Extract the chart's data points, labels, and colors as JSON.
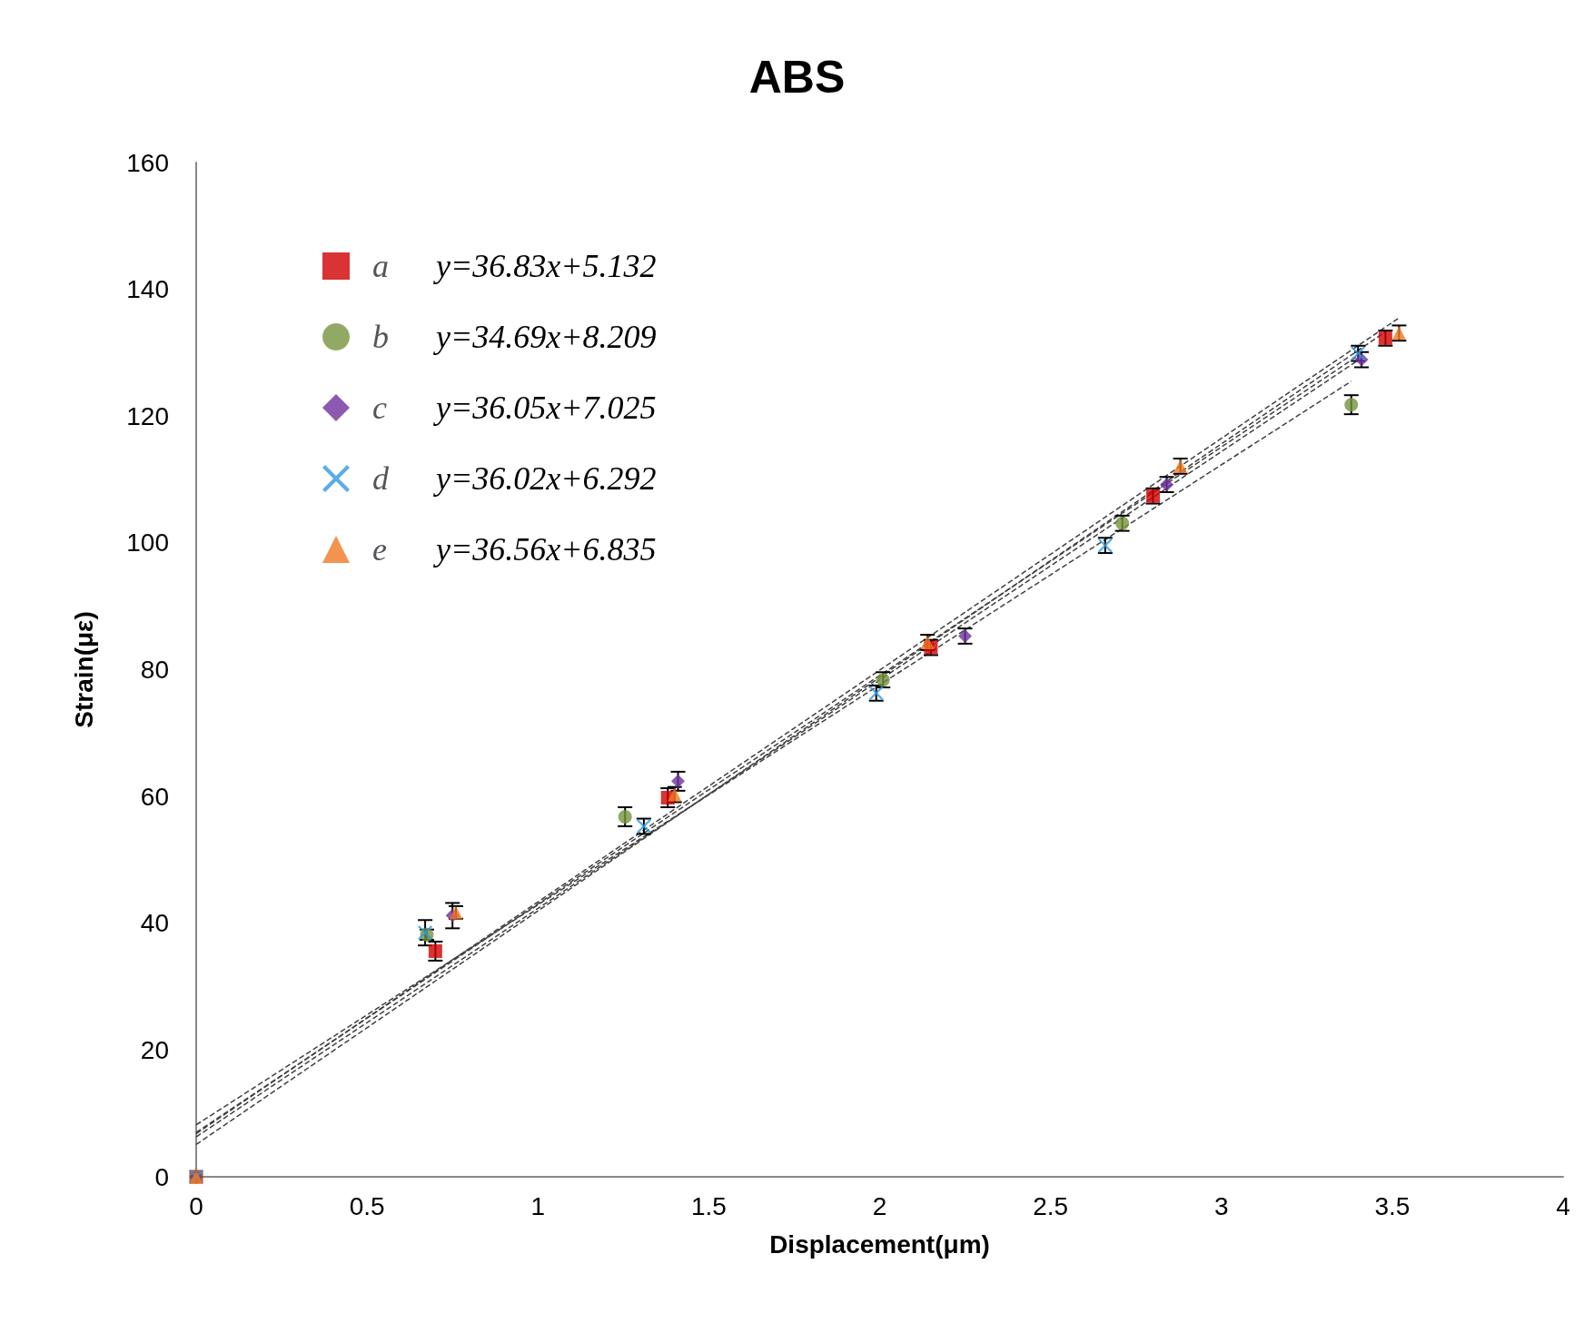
{
  "chart_data": {
    "type": "scatter",
    "title": "ABS",
    "xlabel": "Displacement(μm)",
    "ylabel": "Strain(με)",
    "xlim": [
      0,
      4
    ],
    "xticks": [
      0,
      0.5,
      1,
      1.5,
      2,
      2.5,
      3,
      3.5,
      4
    ],
    "ylim": [
      0,
      160
    ],
    "yticks": [
      0,
      20,
      40,
      60,
      80,
      100,
      120,
      140,
      160
    ],
    "grid": false,
    "legend": "top left",
    "annotations": [
      "y=36.83x+5.132",
      "y=34.69x+8.209",
      "y=36.05x+7.025",
      "y=36.02x+6.292",
      "y=36.56x+6.835"
    ],
    "series": [
      {
        "name": "a",
        "color": "#d00000",
        "marker": "square",
        "x": [
          0,
          0.7,
          1.38,
          2.15,
          2.8,
          3.48
        ],
        "values": [
          0,
          35.6,
          59.8,
          83.5,
          107.4,
          132.3
        ],
        "errors": [
          null,
          1.5,
          1.5,
          1.2,
          1.2,
          1.2
        ]
      },
      {
        "name": "b",
        "color": "#77933c",
        "marker": "circle",
        "x": [
          0,
          0.675,
          1.255,
          2.01,
          2.71,
          3.38
        ],
        "values": [
          0,
          38.2,
          56.8,
          78.4,
          103.1,
          121.8
        ],
        "errors": [
          null,
          0.8,
          1.5,
          1.2,
          1.2,
          1.5
        ]
      },
      {
        "name": "c",
        "color": "#7030a0",
        "marker": "diamond",
        "x": [
          0,
          0.75,
          1.41,
          2.25,
          2.84,
          3.41
        ],
        "values": [
          0,
          41.2,
          62.4,
          85.3,
          109.2,
          128.9
        ],
        "errors": [
          null,
          2,
          1.5,
          1.2,
          1.2,
          1.2
        ]
      },
      {
        "name": "d",
        "color": "#3399e0",
        "marker": "cross",
        "x": [
          0,
          0.67,
          1.31,
          1.99,
          2.66,
          3.4
        ],
        "values": [
          0,
          38.5,
          55.3,
          76.3,
          99.6,
          129.9
        ],
        "errors": [
          null,
          2,
          1.2,
          1.2,
          1.2,
          1.2
        ]
      },
      {
        "name": "e",
        "color": "#f07820",
        "marker": "triangle",
        "x": [
          0,
          0.76,
          1.4,
          2.14,
          2.88,
          3.52
        ],
        "values": [
          0,
          41.7,
          60.3,
          84.3,
          112.1,
          133.1
        ],
        "errors": [
          null,
          1.0,
          1.2,
          1.2,
          1.2,
          1.2
        ]
      },
      {
        "type": "line",
        "color": "#404040",
        "line_style": "dashed",
        "marker": "none",
        "x": [
          0,
          3.48
        ],
        "values": [
          5.1,
          133.3
        ]
      },
      {
        "type": "line",
        "color": "#404040",
        "line_style": "dashed",
        "marker": "none",
        "x": [
          0,
          3.38
        ],
        "values": [
          8.2,
          125.5
        ]
      },
      {
        "type": "line",
        "color": "#404040",
        "line_style": "dashed",
        "marker": "none",
        "x": [
          0,
          3.41
        ],
        "values": [
          7.0,
          129.9
        ]
      },
      {
        "type": "line",
        "color": "#404040",
        "line_style": "dashed",
        "marker": "none",
        "x": [
          0,
          3.4
        ],
        "values": [
          6.3,
          128.8
        ]
      },
      {
        "type": "line",
        "color": "#404040",
        "line_style": "dashed",
        "marker": "none",
        "x": [
          0,
          3.52
        ],
        "values": [
          6.8,
          135.5
        ]
      }
    ]
  }
}
